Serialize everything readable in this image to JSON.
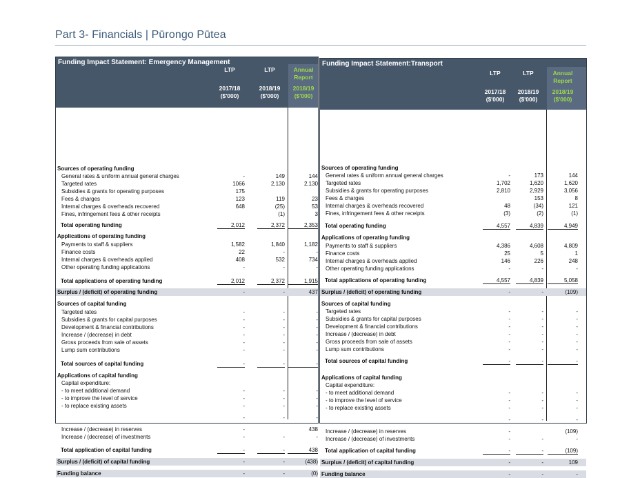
{
  "page_title": "Part 3- Financials | Pūrongo Pūtea",
  "left": {
    "title": "Funding Impact Statement: Emergency Management",
    "columns": [
      {
        "l1": "LTP",
        "l2": "",
        "l3": "2017/18",
        "l4": "($'000)"
      },
      {
        "l1": "LTP",
        "l2": "",
        "l3": "2018/19",
        "l4": "($'000)"
      },
      {
        "l1": "Annual",
        "l2": "Report",
        "l3": "2018/19",
        "l4": "($'000)"
      }
    ],
    "rows": [
      {
        "label": "Sources of operating funding",
        "type": "sec",
        "v": [
          "",
          "",
          ""
        ]
      },
      {
        "label": "General rates & uniform annual general charges",
        "type": "item",
        "v": [
          "-",
          "149",
          "144"
        ]
      },
      {
        "label": "Targeted rates",
        "type": "item",
        "v": [
          "1066",
          "2,130",
          "2,130"
        ]
      },
      {
        "label": "Subsidies & grants for operating purposes",
        "type": "item",
        "v": [
          "175",
          "",
          ""
        ]
      },
      {
        "label": "Fees & charges",
        "type": "item",
        "v": [
          "123",
          "119",
          "23"
        ]
      },
      {
        "label": "Internal charges & overheads recovered",
        "type": "item",
        "v": [
          "648",
          "(25)",
          "53"
        ]
      },
      {
        "label": "Fines, infringement fees & other receipts",
        "type": "item",
        "v": [
          "",
          "(1)",
          "3"
        ]
      },
      {
        "label": "Total operating funding",
        "type": "total",
        "v": [
          "2,012",
          "2,372",
          "2,353"
        ]
      },
      {
        "label": "Applications of operating funding",
        "type": "sec",
        "v": [
          "",
          "",
          ""
        ]
      },
      {
        "label": "Payments to staff & suppliers",
        "type": "item",
        "v": [
          "1,582",
          "1,840",
          "1,182"
        ]
      },
      {
        "label": "Finance costs",
        "type": "item",
        "v": [
          "22",
          "-",
          "-"
        ]
      },
      {
        "label": "Internal charges & overheads applied",
        "type": "item",
        "v": [
          "408",
          "532",
          "734"
        ]
      },
      {
        "label": "Other operating funding applications",
        "type": "item",
        "v": [
          "-",
          "-",
          "-"
        ]
      },
      {
        "label": "Total applications of operating funding",
        "type": "total",
        "v": [
          "2,012",
          "2,372",
          "1,915"
        ]
      },
      {
        "label": "Surplus / (deficit) of operating funding",
        "type": "shade",
        "v": [
          "-",
          "-",
          "437"
        ]
      },
      {
        "label": "Sources of capital funding",
        "type": "sec",
        "v": [
          "",
          "",
          ""
        ]
      },
      {
        "label": "Targeted rates",
        "type": "item",
        "v": [
          "-",
          "-",
          "-"
        ]
      },
      {
        "label": "Subsidies & grants for capital purposes",
        "type": "item",
        "v": [
          "-",
          "-",
          "-"
        ]
      },
      {
        "label": "Development & financial contributions",
        "type": "item",
        "v": [
          "-",
          "-",
          "-"
        ]
      },
      {
        "label": "Increase / (decrease) in debt",
        "type": "item",
        "v": [
          "-",
          "-",
          "-"
        ]
      },
      {
        "label": "Gross proceeds from sale of assets",
        "type": "item",
        "v": [
          "-",
          "-",
          "-"
        ]
      },
      {
        "label": "Lump sum contributions",
        "type": "item",
        "v": [
          "-",
          "-",
          "-"
        ]
      },
      {
        "label": "Total sources of capital funding",
        "type": "total",
        "v": [
          "-",
          "-",
          "-"
        ]
      },
      {
        "label": "Applications of capital funding",
        "type": "sec",
        "v": [
          "",
          "",
          ""
        ]
      },
      {
        "label": "Capital expenditure:",
        "type": "item",
        "v": [
          "",
          "",
          ""
        ]
      },
      {
        "label": "- to meet additional demand",
        "type": "item",
        "v": [
          "-",
          "-",
          "-"
        ]
      },
      {
        "label": "- to improve the level of service",
        "type": "item",
        "v": [
          "-",
          "-",
          "-"
        ]
      },
      {
        "label": "- to replace existing assets",
        "type": "item",
        "v": [
          "-",
          "-",
          "-"
        ]
      },
      {
        "label": "",
        "type": "item",
        "v": [
          "-",
          "-",
          "-"
        ]
      },
      {
        "label": "Increase / (decrease) in reserves",
        "type": "item",
        "v": [
          "-",
          "",
          "438"
        ]
      },
      {
        "label": "Increase / (decrease) of investments",
        "type": "item",
        "v": [
          "-",
          "-",
          "-"
        ]
      },
      {
        "label": "Total application of capital funding",
        "type": "total",
        "v": [
          "-",
          "-",
          "438"
        ]
      },
      {
        "label": "Surplus / (deficit) of capital funding",
        "type": "shade",
        "v": [
          "-",
          "-",
          "(438)"
        ]
      },
      {
        "label": "Funding balance",
        "type": "shade",
        "v": [
          "-",
          "-",
          "(0)"
        ]
      }
    ]
  },
  "right": {
    "title": "Funding Impact Statement:Transport",
    "columns": [
      {
        "l1": "LTP",
        "l2": "",
        "l3": "2017/18",
        "l4": "($'000)"
      },
      {
        "l1": "LTP",
        "l2": "",
        "l3": "2018/19",
        "l4": "($'000)"
      },
      {
        "l1": "Annual",
        "l2": "Report",
        "l3": "2018/19",
        "l4": "($'000)"
      }
    ],
    "rows": [
      {
        "label": "Sources of operating funding",
        "type": "sec",
        "v": [
          "",
          "",
          ""
        ]
      },
      {
        "label": "General rates & uniform annual general charges",
        "type": "item",
        "v": [
          "-",
          "173",
          "144"
        ]
      },
      {
        "label": "Targeted rates",
        "type": "item",
        "v": [
          "1,702",
          "1,620",
          "1,620"
        ]
      },
      {
        "label": "Subsidies & grants for operating purposes",
        "type": "item",
        "v": [
          "2,810",
          "2,929",
          "3,056"
        ]
      },
      {
        "label": "Fees & charges",
        "type": "item",
        "v": [
          "",
          "153",
          "8"
        ]
      },
      {
        "label": "Internal charges & overheads recovered",
        "type": "item",
        "v": [
          "48",
          "(34)",
          "121"
        ]
      },
      {
        "label": "Fines, infringement fees & other receipts",
        "type": "item",
        "v": [
          "(3)",
          "(2)",
          "(1)"
        ]
      },
      {
        "label": "Total operating funding",
        "type": "total",
        "v": [
          "4,557",
          "4,839",
          "4,949"
        ]
      },
      {
        "label": "Applications of operating funding",
        "type": "sec",
        "v": [
          "",
          "",
          ""
        ]
      },
      {
        "label": "Payments to staff & suppliers",
        "type": "item",
        "v": [
          "4,386",
          "4,608",
          "4,809"
        ]
      },
      {
        "label": "Finance costs",
        "type": "item",
        "v": [
          "25",
          "5",
          "1"
        ]
      },
      {
        "label": "Internal charges & overheads applied",
        "type": "item",
        "v": [
          "146",
          "226",
          "248"
        ]
      },
      {
        "label": "Other operating funding applications",
        "type": "item",
        "v": [
          "-",
          "-",
          "-"
        ]
      },
      {
        "label": "Total applications of operating funding",
        "type": "total",
        "v": [
          "4,557",
          "4,839",
          "5,058"
        ]
      },
      {
        "label": "Surplus / (deficit) of operating funding",
        "type": "shade",
        "v": [
          "-",
          "-",
          "(109)"
        ]
      },
      {
        "label": "Sources of capital funding",
        "type": "sec",
        "v": [
          "",
          "",
          ""
        ]
      },
      {
        "label": "Targeted rates",
        "type": "item",
        "v": [
          "-",
          "-",
          "-"
        ]
      },
      {
        "label": "Subsidies & grants for capital purposes",
        "type": "item",
        "v": [
          "-",
          "-",
          "-"
        ]
      },
      {
        "label": "Development & financial contributions",
        "type": "item",
        "v": [
          "-",
          "-",
          "-"
        ]
      },
      {
        "label": "Increase / (decrease) in debt",
        "type": "item",
        "v": [
          "-",
          "-",
          "-"
        ]
      },
      {
        "label": "Gross proceeds from sale of assets",
        "type": "item",
        "v": [
          "-",
          "-",
          "-"
        ]
      },
      {
        "label": "Lump sum contributions",
        "type": "item",
        "v": [
          "-",
          "-",
          "-"
        ]
      },
      {
        "label": "Total sources of capital funding",
        "type": "total",
        "v": [
          "-",
          "-",
          "-"
        ]
      },
      {
        "label": "Applications of capital funding",
        "type": "sec",
        "v": [
          "",
          "",
          ""
        ]
      },
      {
        "label": "Capital expenditure:",
        "type": "item",
        "v": [
          "",
          "",
          ""
        ]
      },
      {
        "label": "- to meet additional demand",
        "type": "item",
        "v": [
          "-",
          "-",
          "-"
        ]
      },
      {
        "label": "- to improve the level of service",
        "type": "item",
        "v": [
          "-",
          "-",
          "-"
        ]
      },
      {
        "label": "- to replace existing assets",
        "type": "item",
        "v": [
          "-",
          "-",
          "-"
        ]
      },
      {
        "label": "",
        "type": "item",
        "v": [
          "-",
          "-",
          "-"
        ]
      },
      {
        "label": "Increase / (decrease) in reserves",
        "type": "item",
        "v": [
          "-",
          "",
          "(109)"
        ]
      },
      {
        "label": "Increase / (decrease) of investments",
        "type": "item",
        "v": [
          "-",
          "-",
          "-"
        ]
      },
      {
        "label": "Total application of capital funding",
        "type": "total",
        "v": [
          "-",
          "-",
          "(109)"
        ]
      },
      {
        "label": "Surplus / (deficit) of capital funding",
        "type": "shade",
        "v": [
          "-",
          "-",
          "109"
        ]
      },
      {
        "label": "Funding balance",
        "type": "shade",
        "v": [
          "-",
          "-",
          "-"
        ]
      }
    ]
  }
}
